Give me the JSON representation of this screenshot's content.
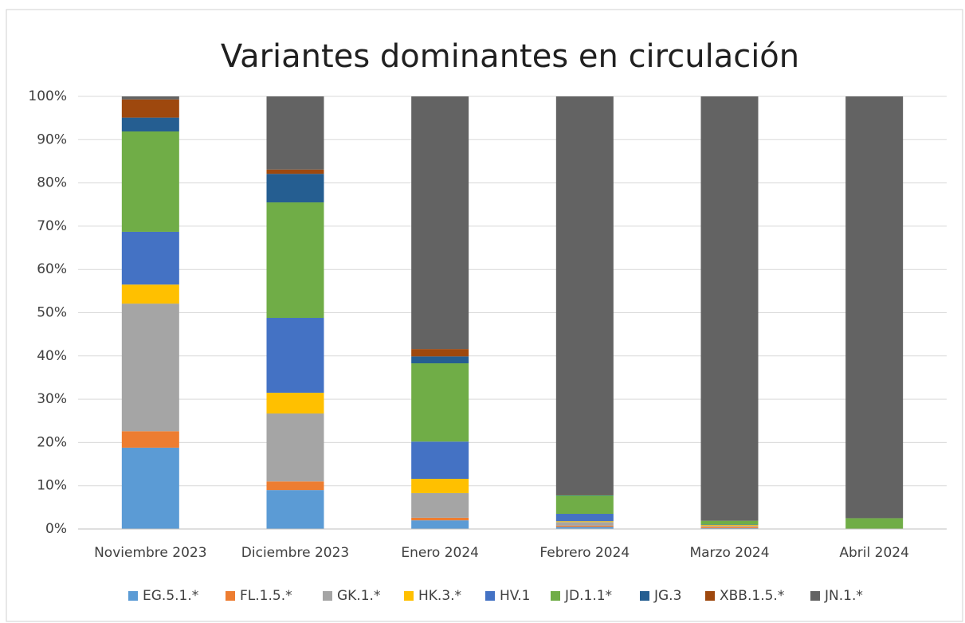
{
  "chart_data": {
    "type": "stacked_bar",
    "title": "Variantes dominantes en circulación",
    "categories": [
      "Noviembre 2023",
      "Diciembre 2023",
      "Enero 2024",
      "Febrero 2024",
      "Marzo 2024",
      "Abril 2024"
    ],
    "series": [
      {
        "name": "EG.5.1.*",
        "color": "#5b9bd5",
        "values": [
          18.8,
          9.0,
          2.0,
          0.5,
          0.2,
          0
        ]
      },
      {
        "name": "FL.1.5.*",
        "color": "#ed7d31",
        "values": [
          3.8,
          2.0,
          0.6,
          0.3,
          0.3,
          0
        ]
      },
      {
        "name": "GK.1.*",
        "color": "#a5a5a5",
        "values": [
          29.5,
          15.7,
          5.7,
          0.8,
          0.2,
          0
        ]
      },
      {
        "name": "HK.3.*",
        "color": "#ffc000",
        "values": [
          4.4,
          4.8,
          3.3,
          0.2,
          0.2,
          0
        ]
      },
      {
        "name": "HV.1",
        "color": "#4472c4",
        "values": [
          12.2,
          17.3,
          8.6,
          1.7,
          0.1,
          0
        ]
      },
      {
        "name": "JD.1.1*",
        "color": "#70ad47",
        "values": [
          23.2,
          26.7,
          18.1,
          4.3,
          0.9,
          2.5
        ]
      },
      {
        "name": "JG.3",
        "color": "#255e91",
        "values": [
          3.2,
          6.6,
          1.6,
          0.2,
          0,
          0
        ]
      },
      {
        "name": "XBB.1.5.*",
        "color": "#9e480e",
        "values": [
          4.2,
          1.0,
          1.7,
          0.1,
          0,
          0
        ]
      },
      {
        "name": "JN.1.*",
        "color": "#636363",
        "values": [
          0.7,
          16.9,
          58.4,
          91.9,
          98.1,
          97.5
        ]
      }
    ],
    "ylim": [
      0,
      100
    ],
    "yticks": [
      {
        "value": 0,
        "label": "0%"
      },
      {
        "value": 10,
        "label": "10%"
      },
      {
        "value": 20,
        "label": "20%"
      },
      {
        "value": 30,
        "label": "30%"
      },
      {
        "value": 40,
        "label": "40%"
      },
      {
        "value": 50,
        "label": "50%"
      },
      {
        "value": 60,
        "label": "60%"
      },
      {
        "value": 70,
        "label": "70%"
      },
      {
        "value": 80,
        "label": "80%"
      },
      {
        "value": 90,
        "label": "90%"
      },
      {
        "value": 100,
        "label": "100%"
      }
    ],
    "grid": true,
    "legend": "bottom"
  }
}
